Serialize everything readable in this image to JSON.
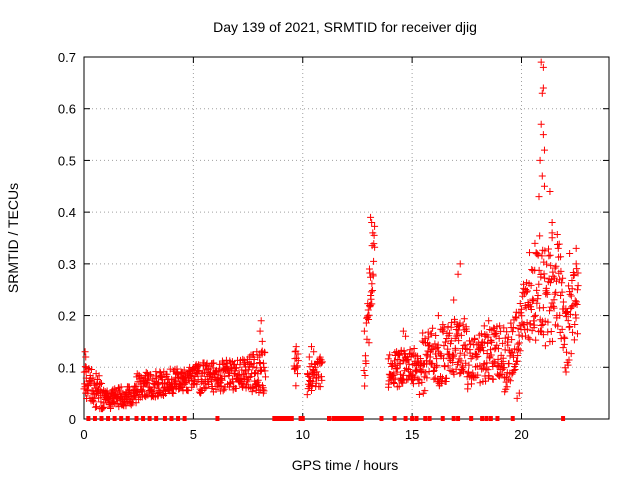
{
  "chart_data": {
    "type": "scatter",
    "title": "Day 139 of 2021, SRMTID for receiver djig",
    "xlabel": "GPS time / hours",
    "ylabel": "SRMTID / TECUs",
    "xlim": [
      0,
      24
    ],
    "ylim": [
      0,
      0.7
    ],
    "xticks": [
      0,
      5,
      10,
      15,
      20
    ],
    "yticks": [
      0,
      0.1,
      0.2,
      0.3,
      0.4,
      0.5,
      0.6,
      0.7
    ],
    "grid": true,
    "legend": "none",
    "marker": "+",
    "color": "#ff0000",
    "data_segments": [
      {
        "x0": 0.0,
        "x1": 0.9,
        "y0": 0.07,
        "y1": 0.04,
        "spread": 0.035,
        "extras": [
          [
            0.05,
            0.13
          ],
          [
            0.08,
            0.12
          ],
          [
            0.1,
            0.1
          ]
        ]
      },
      {
        "x0": 0.9,
        "x1": 2.4,
        "y0": 0.035,
        "y1": 0.045,
        "spread": 0.02
      },
      {
        "x0": 2.4,
        "x1": 5.0,
        "y0": 0.06,
        "y1": 0.075,
        "spread": 0.025
      },
      {
        "x0": 5.0,
        "x1": 7.5,
        "y0": 0.075,
        "y1": 0.085,
        "spread": 0.03
      },
      {
        "x0": 7.5,
        "x1": 8.3,
        "y0": 0.08,
        "y1": 0.09,
        "spread": 0.04,
        "extras": [
          [
            8.1,
            0.19
          ],
          [
            8.05,
            0.17
          ],
          [
            8.15,
            0.15
          ],
          [
            7.9,
            0.13
          ],
          [
            8.2,
            0.05
          ]
        ]
      },
      {
        "x0": 9.6,
        "x1": 9.8,
        "y0": 0.09,
        "y1": 0.1,
        "spread": 0.04,
        "extras": [
          [
            9.7,
            0.14
          ],
          [
            9.65,
            0.13
          ]
        ]
      },
      {
        "x0": 10.2,
        "x1": 10.9,
        "y0": 0.07,
        "y1": 0.09,
        "spread": 0.03,
        "extras": [
          [
            10.4,
            0.14
          ],
          [
            10.5,
            0.13
          ],
          [
            10.3,
            0.12
          ]
        ]
      },
      {
        "x0": 12.8,
        "x1": 13.3,
        "y0": 0.1,
        "y1": 0.33,
        "spread": 0.06,
        "extras": [
          [
            13.1,
            0.39
          ],
          [
            13.15,
            0.38
          ],
          [
            13.2,
            0.36
          ],
          [
            13.05,
            0.29
          ],
          [
            13.1,
            0.22
          ]
        ]
      },
      {
        "x0": 13.9,
        "x1": 15.3,
        "y0": 0.09,
        "y1": 0.1,
        "spread": 0.035,
        "extras": [
          [
            14.6,
            0.17
          ],
          [
            14.7,
            0.16
          ],
          [
            14.5,
            0.13
          ]
        ]
      },
      {
        "x0": 15.3,
        "x1": 17.5,
        "y0": 0.1,
        "y1": 0.14,
        "spread": 0.06,
        "extras": [
          [
            16.9,
            0.23
          ],
          [
            17.1,
            0.28
          ],
          [
            17.2,
            0.3
          ],
          [
            16.2,
            0.2
          ]
        ]
      },
      {
        "x0": 17.5,
        "x1": 19.2,
        "y0": 0.1,
        "y1": 0.13,
        "spread": 0.05,
        "extras": [
          [
            18.5,
            0.19
          ],
          [
            18.3,
            0.18
          ],
          [
            19.0,
            0.18
          ]
        ]
      },
      {
        "x0": 19.2,
        "x1": 20.3,
        "y0": 0.09,
        "y1": 0.22,
        "spread": 0.06,
        "extras": [
          [
            19.8,
            0.04
          ],
          [
            19.9,
            0.05
          ]
        ]
      },
      {
        "x0": 20.3,
        "x1": 21.9,
        "y0": 0.23,
        "y1": 0.25,
        "spread": 0.11,
        "extras": [
          [
            20.9,
            0.69
          ],
          [
            21.0,
            0.68
          ],
          [
            20.95,
            0.63
          ],
          [
            21.0,
            0.64
          ],
          [
            20.9,
            0.57
          ],
          [
            21.0,
            0.55
          ],
          [
            21.05,
            0.52
          ],
          [
            20.85,
            0.5
          ],
          [
            20.95,
            0.47
          ],
          [
            21.05,
            0.45
          ],
          [
            20.8,
            0.43
          ],
          [
            21.3,
            0.44
          ],
          [
            21.4,
            0.38
          ],
          [
            21.4,
            0.36
          ]
        ]
      },
      {
        "x0": 21.9,
        "x1": 22.6,
        "y0": 0.15,
        "y1": 0.22,
        "spread": 0.08,
        "extras": [
          [
            22.2,
            0.32
          ],
          [
            22.5,
            0.33
          ],
          [
            22.5,
            0.3
          ]
        ]
      }
    ],
    "zero_markers": [
      0.2,
      0.5,
      0.8,
      1.1,
      1.4,
      1.7,
      2.0,
      2.4,
      2.7,
      3.0,
      3.3,
      3.7,
      4.0,
      4.3,
      4.6,
      6.1,
      8.7,
      8.8,
      8.9,
      9.0,
      9.1,
      9.2,
      9.3,
      9.4,
      9.5,
      9.9,
      10.0,
      11.2,
      11.4,
      11.5,
      11.6,
      11.7,
      11.8,
      11.9,
      12.0,
      12.1,
      12.2,
      12.3,
      12.4,
      12.5,
      12.6,
      12.7,
      13.6,
      14.2,
      14.7,
      15.0,
      15.2,
      15.6,
      15.8,
      16.4,
      16.9,
      17.1,
      17.7,
      18.2,
      18.4,
      18.6,
      18.9,
      19.6,
      21.9
    ]
  }
}
